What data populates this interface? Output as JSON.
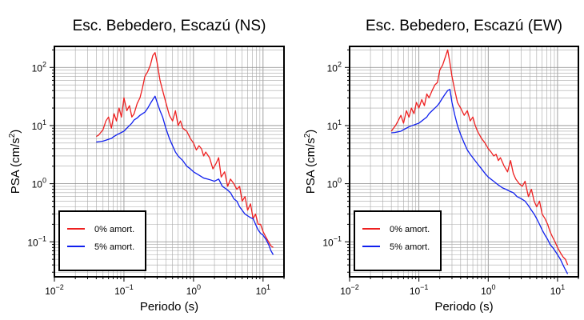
{
  "chart_data": [
    {
      "type": "line",
      "title": "Esc. Bebedero, Escazú (NS)",
      "xlabel": "Periodo (s)",
      "ylabel_main": "PSA (cm/s",
      "ylabel_sup": "2",
      "ylabel_close": ")",
      "xscale": "log",
      "yscale": "log",
      "xlim": [
        0.01,
        20
      ],
      "ylim": [
        0.025,
        230
      ],
      "xtick_labels": [
        {
          "base": "10",
          "exp": "−2"
        },
        {
          "base": "10",
          "exp": "−1"
        },
        {
          "base": "10",
          "exp": "0"
        },
        {
          "base": "10",
          "exp": "1"
        }
      ],
      "ytick_labels": [
        {
          "base": "10",
          "exp": "−1"
        },
        {
          "base": "10",
          "exp": "0"
        },
        {
          "base": "10",
          "exp": "1"
        },
        {
          "base": "10",
          "exp": "2"
        }
      ],
      "grid": true,
      "legend_position": "bottom-left",
      "series": [
        {
          "name": "0% amort.",
          "color": "#ee2020",
          "x": [
            0.04,
            0.043,
            0.046,
            0.05,
            0.055,
            0.06,
            0.066,
            0.072,
            0.078,
            0.085,
            0.092,
            0.1,
            0.11,
            0.12,
            0.13,
            0.14,
            0.155,
            0.17,
            0.185,
            0.2,
            0.22,
            0.24,
            0.26,
            0.28,
            0.3,
            0.33,
            0.36,
            0.4,
            0.45,
            0.5,
            0.55,
            0.6,
            0.65,
            0.7,
            0.8,
            0.9,
            1.0,
            1.1,
            1.2,
            1.3,
            1.4,
            1.5,
            1.7,
            1.9,
            2.1,
            2.3,
            2.5,
            2.8,
            3.1,
            3.4,
            3.8,
            4.2,
            4.6,
            5.0,
            5.5,
            6.0,
            6.6,
            7.2,
            7.8,
            8.5,
            9.2,
            10.0,
            11.0,
            12.0,
            13.0,
            14.0
          ],
          "y": [
            6.5,
            6.8,
            7.5,
            8.5,
            12,
            14,
            9,
            16,
            12,
            20,
            14,
            30,
            18,
            22,
            14,
            16,
            24,
            30,
            45,
            70,
            85,
            110,
            160,
            180,
            120,
            60,
            40,
            25,
            15,
            12,
            18,
            10,
            12,
            9,
            8,
            6,
            5,
            3.8,
            4.5,
            4,
            3,
            3.5,
            2.8,
            1.8,
            2.2,
            2.8,
            1.3,
            1.6,
            0.9,
            1.2,
            1.0,
            0.8,
            0.9,
            0.5,
            0.6,
            0.35,
            0.45,
            0.25,
            0.3,
            0.2,
            0.2,
            0.15,
            0.12,
            0.1,
            0.085,
            0.08
          ]
        },
        {
          "name": "5% amort.",
          "color": "#1020ee",
          "x": [
            0.04,
            0.045,
            0.05,
            0.055,
            0.06,
            0.066,
            0.072,
            0.08,
            0.09,
            0.1,
            0.11,
            0.12,
            0.13,
            0.14,
            0.155,
            0.17,
            0.185,
            0.2,
            0.22,
            0.24,
            0.26,
            0.28,
            0.3,
            0.33,
            0.36,
            0.4,
            0.45,
            0.5,
            0.55,
            0.6,
            0.7,
            0.8,
            0.9,
            1.0,
            1.2,
            1.4,
            1.6,
            1.8,
            2.0,
            2.3,
            2.6,
            3.0,
            3.4,
            3.8,
            4.2,
            4.6,
            5.0,
            5.5,
            6.0,
            6.6,
            7.2,
            7.8,
            8.5,
            9.2,
            10.0,
            11.0,
            12.0,
            13.0,
            14.0
          ],
          "y": [
            5.2,
            5.3,
            5.4,
            5.6,
            5.8,
            6.0,
            6.5,
            7.0,
            7.5,
            8.0,
            9.0,
            10.0,
            11.0,
            12.5,
            13.5,
            15.0,
            16.0,
            17.0,
            20.0,
            24.0,
            28.0,
            32.0,
            25.0,
            18.0,
            14.0,
            9.0,
            6.0,
            4.5,
            3.5,
            3.0,
            2.5,
            2.0,
            1.8,
            1.6,
            1.4,
            1.25,
            1.2,
            1.15,
            1.1,
            1.2,
            0.9,
            0.8,
            0.7,
            0.55,
            0.5,
            0.4,
            0.35,
            0.3,
            0.28,
            0.26,
            0.25,
            0.2,
            0.16,
            0.14,
            0.13,
            0.11,
            0.09,
            0.07,
            0.06
          ]
        }
      ]
    },
    {
      "type": "line",
      "title": "Esc. Bebedero, Escazú (EW)",
      "xlabel": "Periodo (s)",
      "ylabel_main": "PSA (cm/s",
      "ylabel_sup": "2",
      "ylabel_close": ")",
      "xscale": "log",
      "yscale": "log",
      "xlim": [
        0.01,
        20
      ],
      "ylim": [
        0.025,
        230
      ],
      "xtick_labels": [
        {
          "base": "10",
          "exp": "−2"
        },
        {
          "base": "10",
          "exp": "−1"
        },
        {
          "base": "10",
          "exp": "0"
        },
        {
          "base": "10",
          "exp": "1"
        }
      ],
      "ytick_labels": [
        {
          "base": "10",
          "exp": "−1"
        },
        {
          "base": "10",
          "exp": "0"
        },
        {
          "base": "10",
          "exp": "1"
        },
        {
          "base": "10",
          "exp": "2"
        }
      ],
      "grid": true,
      "legend_position": "bottom-left",
      "series": [
        {
          "name": "0% amort.",
          "color": "#ee2020",
          "x": [
            0.04,
            0.043,
            0.046,
            0.05,
            0.055,
            0.06,
            0.066,
            0.072,
            0.078,
            0.085,
            0.092,
            0.1,
            0.11,
            0.12,
            0.13,
            0.14,
            0.155,
            0.17,
            0.185,
            0.2,
            0.22,
            0.24,
            0.26,
            0.28,
            0.3,
            0.33,
            0.36,
            0.4,
            0.45,
            0.5,
            0.55,
            0.6,
            0.65,
            0.7,
            0.8,
            0.9,
            1.0,
            1.1,
            1.2,
            1.3,
            1.4,
            1.5,
            1.7,
            1.9,
            2.1,
            2.3,
            2.5,
            2.8,
            3.1,
            3.4,
            3.8,
            4.2,
            4.6,
            5.0,
            5.5,
            6.0,
            6.6,
            7.2,
            7.8,
            8.5,
            9.2,
            10.0,
            11.0,
            12.0,
            13.0,
            14.0
          ],
          "y": [
            8,
            9,
            10,
            12,
            15,
            11,
            18,
            14,
            20,
            16,
            25,
            20,
            28,
            22,
            35,
            30,
            40,
            50,
            55,
            90,
            110,
            150,
            200,
            120,
            70,
            40,
            25,
            20,
            15,
            18,
            12,
            14,
            10,
            8,
            6,
            5,
            4,
            3.5,
            3,
            3.2,
            2.5,
            2.8,
            2.0,
            1.6,
            2.5,
            1.5,
            1.2,
            1.0,
            0.9,
            1.1,
            0.6,
            0.8,
            0.5,
            0.4,
            0.5,
            0.3,
            0.25,
            0.2,
            0.15,
            0.12,
            0.1,
            0.08,
            0.065,
            0.055,
            0.05,
            0.04
          ]
        },
        {
          "name": "5% amort.",
          "color": "#1020ee",
          "x": [
            0.04,
            0.045,
            0.05,
            0.055,
            0.06,
            0.066,
            0.072,
            0.08,
            0.09,
            0.1,
            0.11,
            0.12,
            0.13,
            0.14,
            0.155,
            0.17,
            0.185,
            0.2,
            0.22,
            0.24,
            0.26,
            0.28,
            0.3,
            0.33,
            0.36,
            0.4,
            0.45,
            0.5,
            0.55,
            0.6,
            0.7,
            0.8,
            0.9,
            1.0,
            1.2,
            1.4,
            1.6,
            1.8,
            2.0,
            2.3,
            2.6,
            3.0,
            3.4,
            3.8,
            4.2,
            4.6,
            5.0,
            5.5,
            6.0,
            6.6,
            7.2,
            7.8,
            8.5,
            9.2,
            10.0,
            11.0,
            12.0,
            13.0,
            14.0
          ],
          "y": [
            7.5,
            7.6,
            7.8,
            8.0,
            8.5,
            9.0,
            9.5,
            10,
            10.5,
            11,
            12,
            13,
            14,
            16,
            18,
            20,
            22,
            25,
            30,
            35,
            40,
            42,
            25,
            15,
            10,
            7,
            5,
            3.8,
            3.2,
            2.8,
            2.2,
            1.8,
            1.5,
            1.3,
            1.1,
            0.95,
            0.85,
            0.8,
            0.75,
            0.7,
            0.6,
            0.55,
            0.5,
            0.42,
            0.35,
            0.3,
            0.25,
            0.2,
            0.16,
            0.13,
            0.11,
            0.09,
            0.08,
            0.07,
            0.06,
            0.05,
            0.04,
            0.033,
            0.028
          ]
        }
      ]
    }
  ]
}
